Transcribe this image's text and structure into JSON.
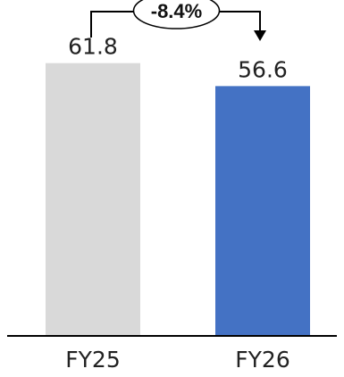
{
  "chart_data": {
    "type": "bar",
    "categories": [
      "FY25",
      "FY26"
    ],
    "values": [
      61.8,
      56.6
    ],
    "value_labels": [
      "61.8",
      "56.6"
    ],
    "bar_colors": [
      "#d9d9d9",
      "#4472c4"
    ],
    "title": "",
    "xlabel": "",
    "ylabel": "",
    "ylim": [
      0,
      67
    ],
    "grid": false,
    "legend": "none",
    "annotation": {
      "text": "-8.4%",
      "from_category": "FY25",
      "to_category": "FY26",
      "style": "bracket-arrow"
    }
  },
  "colors": {
    "axis": "#000000",
    "text": "#222222",
    "connector": "#000000"
  }
}
